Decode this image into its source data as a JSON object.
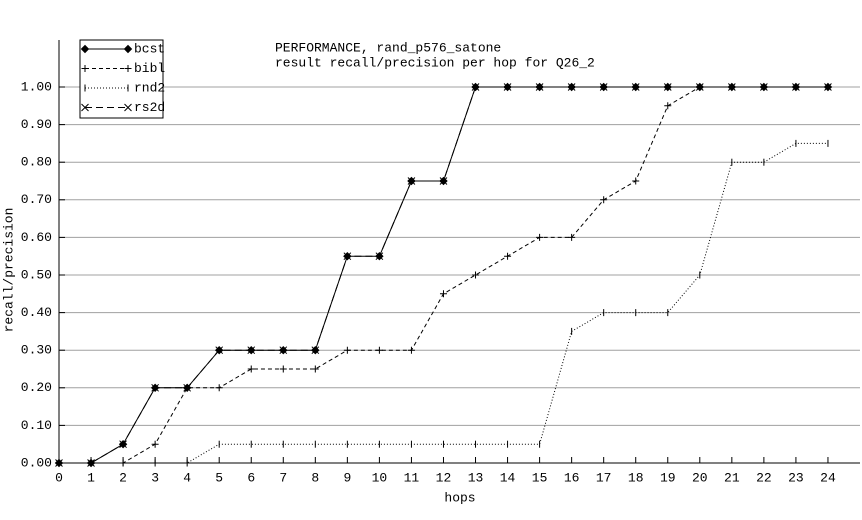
{
  "chart_data": {
    "type": "line",
    "title": "PERFORMANCE, rand_p576_satone",
    "subtitle": "result recall/precision per hop for Q26_2",
    "x_label": "hops",
    "y_label": "recall/precision",
    "x": [
      0,
      1,
      2,
      3,
      4,
      5,
      6,
      7,
      8,
      9,
      10,
      11,
      12,
      13,
      14,
      15,
      16,
      17,
      18,
      19,
      20,
      21,
      22,
      23,
      24
    ],
    "xlim": [
      0,
      25
    ],
    "xticks": [
      0,
      1,
      2,
      3,
      4,
      5,
      6,
      7,
      8,
      9,
      10,
      11,
      12,
      13,
      14,
      15,
      16,
      17,
      18,
      19,
      20,
      21,
      22,
      23,
      24
    ],
    "ylim": [
      0,
      1.125
    ],
    "yticks": [
      {
        "value": 0,
        "label": "0.00"
      },
      {
        "value": 0.1,
        "label": "0.10"
      },
      {
        "value": 0.2,
        "label": "0.20"
      },
      {
        "value": 0.3,
        "label": "0.30"
      },
      {
        "value": 0.4,
        "label": "0.40"
      },
      {
        "value": 0.5,
        "label": "0.50"
      },
      {
        "value": 0.6,
        "label": "0.60"
      },
      {
        "value": 0.7,
        "label": "0.70"
      },
      {
        "value": 0.8,
        "label": "0.80"
      },
      {
        "value": 0.9,
        "label": "0.90"
      },
      {
        "value": 1,
        "label": "1.00"
      }
    ],
    "grid": true,
    "legend_position": "upper left",
    "series": [
      {
        "name": "bcst",
        "color": "#000000",
        "marker": "diamond",
        "dash": "solid",
        "values": [
          0,
          0,
          0.05,
          0.2,
          0.2,
          0.3,
          0.3,
          0.3,
          0.3,
          0.55,
          0.55,
          0.75,
          0.75,
          1,
          1,
          1,
          1,
          1,
          1,
          1,
          1,
          1,
          1,
          1,
          1
        ]
      },
      {
        "name": "bibl",
        "color": "#000000",
        "marker": "plus",
        "dash": "dashed",
        "values": [
          0,
          0,
          0,
          0.05,
          0.2,
          0.2,
          0.25,
          0.25,
          0.25,
          0.3,
          0.3,
          0.3,
          0.45,
          0.5,
          0.55,
          0.6,
          0.6,
          0.7,
          0.75,
          0.95,
          1,
          1,
          1,
          1,
          1
        ]
      },
      {
        "name": "rnd2",
        "color": "#000000",
        "marker": "vbar",
        "dash": "dotted",
        "values": [
          0,
          0,
          0,
          0,
          0,
          0.05,
          0.05,
          0.05,
          0.05,
          0.05,
          0.05,
          0.05,
          0.05,
          0.05,
          0.05,
          0.05,
          0.35,
          0.4,
          0.4,
          0.4,
          0.5,
          0.8,
          0.8,
          0.85,
          0.85
        ]
      },
      {
        "name": "rs2d",
        "color": "#000000",
        "marker": "cross",
        "dash": "longdash",
        "values": [
          0,
          0,
          0.05,
          0.2,
          0.2,
          0.3,
          0.3,
          0.3,
          0.3,
          0.55,
          0.55,
          0.75,
          0.75,
          1,
          1,
          1,
          1,
          1,
          1,
          1,
          1,
          1,
          1,
          1,
          1
        ]
      }
    ]
  }
}
